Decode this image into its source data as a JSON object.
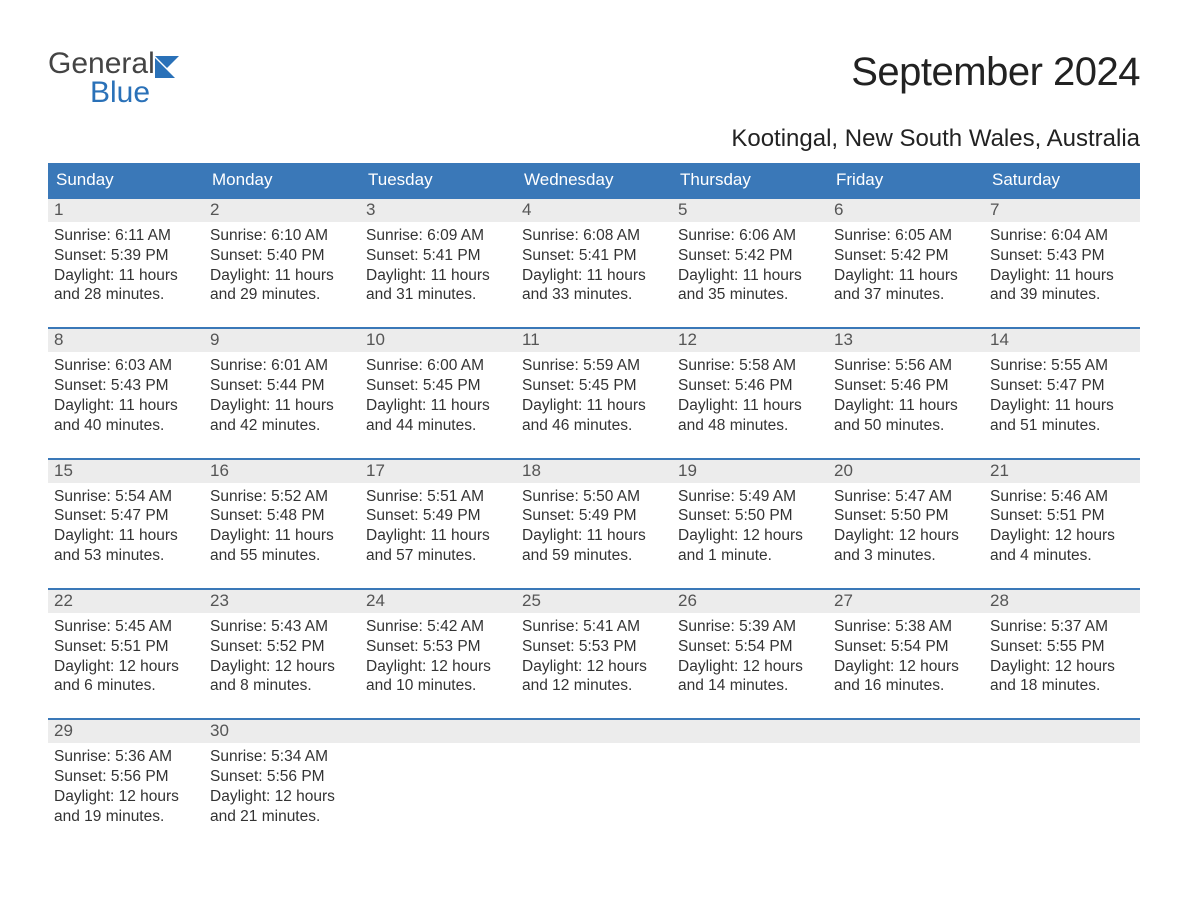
{
  "logo": {
    "line1": "General",
    "line2": "Blue",
    "flag_color": "#2a71b8",
    "text_gray": "#444"
  },
  "title": "September 2024",
  "location": "Kootingal, New South Wales, Australia",
  "colors": {
    "header_bg": "#3a78b8",
    "header_text": "#ffffff",
    "daynum_bg": "#ececec",
    "daynum_text": "#555555",
    "body_text": "#333333",
    "week_rule": "#3a78b8",
    "page_bg": "#ffffff"
  },
  "day_headers": [
    "Sunday",
    "Monday",
    "Tuesday",
    "Wednesday",
    "Thursday",
    "Friday",
    "Saturday"
  ],
  "weeks": [
    [
      {
        "n": "1",
        "sunrise": "6:11 AM",
        "sunset": "5:39 PM",
        "dl1": "11 hours",
        "dl2": "and 28 minutes."
      },
      {
        "n": "2",
        "sunrise": "6:10 AM",
        "sunset": "5:40 PM",
        "dl1": "11 hours",
        "dl2": "and 29 minutes."
      },
      {
        "n": "3",
        "sunrise": "6:09 AM",
        "sunset": "5:41 PM",
        "dl1": "11 hours",
        "dl2": "and 31 minutes."
      },
      {
        "n": "4",
        "sunrise": "6:08 AM",
        "sunset": "5:41 PM",
        "dl1": "11 hours",
        "dl2": "and 33 minutes."
      },
      {
        "n": "5",
        "sunrise": "6:06 AM",
        "sunset": "5:42 PM",
        "dl1": "11 hours",
        "dl2": "and 35 minutes."
      },
      {
        "n": "6",
        "sunrise": "6:05 AM",
        "sunset": "5:42 PM",
        "dl1": "11 hours",
        "dl2": "and 37 minutes."
      },
      {
        "n": "7",
        "sunrise": "6:04 AM",
        "sunset": "5:43 PM",
        "dl1": "11 hours",
        "dl2": "and 39 minutes."
      }
    ],
    [
      {
        "n": "8",
        "sunrise": "6:03 AM",
        "sunset": "5:43 PM",
        "dl1": "11 hours",
        "dl2": "and 40 minutes."
      },
      {
        "n": "9",
        "sunrise": "6:01 AM",
        "sunset": "5:44 PM",
        "dl1": "11 hours",
        "dl2": "and 42 minutes."
      },
      {
        "n": "10",
        "sunrise": "6:00 AM",
        "sunset": "5:45 PM",
        "dl1": "11 hours",
        "dl2": "and 44 minutes."
      },
      {
        "n": "11",
        "sunrise": "5:59 AM",
        "sunset": "5:45 PM",
        "dl1": "11 hours",
        "dl2": "and 46 minutes."
      },
      {
        "n": "12",
        "sunrise": "5:58 AM",
        "sunset": "5:46 PM",
        "dl1": "11 hours",
        "dl2": "and 48 minutes."
      },
      {
        "n": "13",
        "sunrise": "5:56 AM",
        "sunset": "5:46 PM",
        "dl1": "11 hours",
        "dl2": "and 50 minutes."
      },
      {
        "n": "14",
        "sunrise": "5:55 AM",
        "sunset": "5:47 PM",
        "dl1": "11 hours",
        "dl2": "and 51 minutes."
      }
    ],
    [
      {
        "n": "15",
        "sunrise": "5:54 AM",
        "sunset": "5:47 PM",
        "dl1": "11 hours",
        "dl2": "and 53 minutes."
      },
      {
        "n": "16",
        "sunrise": "5:52 AM",
        "sunset": "5:48 PM",
        "dl1": "11 hours",
        "dl2": "and 55 minutes."
      },
      {
        "n": "17",
        "sunrise": "5:51 AM",
        "sunset": "5:49 PM",
        "dl1": "11 hours",
        "dl2": "and 57 minutes."
      },
      {
        "n": "18",
        "sunrise": "5:50 AM",
        "sunset": "5:49 PM",
        "dl1": "11 hours",
        "dl2": "and 59 minutes."
      },
      {
        "n": "19",
        "sunrise": "5:49 AM",
        "sunset": "5:50 PM",
        "dl1": "12 hours",
        "dl2": "and 1 minute."
      },
      {
        "n": "20",
        "sunrise": "5:47 AM",
        "sunset": "5:50 PM",
        "dl1": "12 hours",
        "dl2": "and 3 minutes."
      },
      {
        "n": "21",
        "sunrise": "5:46 AM",
        "sunset": "5:51 PM",
        "dl1": "12 hours",
        "dl2": "and 4 minutes."
      }
    ],
    [
      {
        "n": "22",
        "sunrise": "5:45 AM",
        "sunset": "5:51 PM",
        "dl1": "12 hours",
        "dl2": "and 6 minutes."
      },
      {
        "n": "23",
        "sunrise": "5:43 AM",
        "sunset": "5:52 PM",
        "dl1": "12 hours",
        "dl2": "and 8 minutes."
      },
      {
        "n": "24",
        "sunrise": "5:42 AM",
        "sunset": "5:53 PM",
        "dl1": "12 hours",
        "dl2": "and 10 minutes."
      },
      {
        "n": "25",
        "sunrise": "5:41 AM",
        "sunset": "5:53 PM",
        "dl1": "12 hours",
        "dl2": "and 12 minutes."
      },
      {
        "n": "26",
        "sunrise": "5:39 AM",
        "sunset": "5:54 PM",
        "dl1": "12 hours",
        "dl2": "and 14 minutes."
      },
      {
        "n": "27",
        "sunrise": "5:38 AM",
        "sunset": "5:54 PM",
        "dl1": "12 hours",
        "dl2": "and 16 minutes."
      },
      {
        "n": "28",
        "sunrise": "5:37 AM",
        "sunset": "5:55 PM",
        "dl1": "12 hours",
        "dl2": "and 18 minutes."
      }
    ],
    [
      {
        "n": "29",
        "sunrise": "5:36 AM",
        "sunset": "5:56 PM",
        "dl1": "12 hours",
        "dl2": "and 19 minutes."
      },
      {
        "n": "30",
        "sunrise": "5:34 AM",
        "sunset": "5:56 PM",
        "dl1": "12 hours",
        "dl2": "and 21 minutes."
      },
      null,
      null,
      null,
      null,
      null
    ]
  ],
  "labels": {
    "sunrise_prefix": "Sunrise: ",
    "sunset_prefix": "Sunset: ",
    "daylight_prefix": "Daylight: "
  }
}
